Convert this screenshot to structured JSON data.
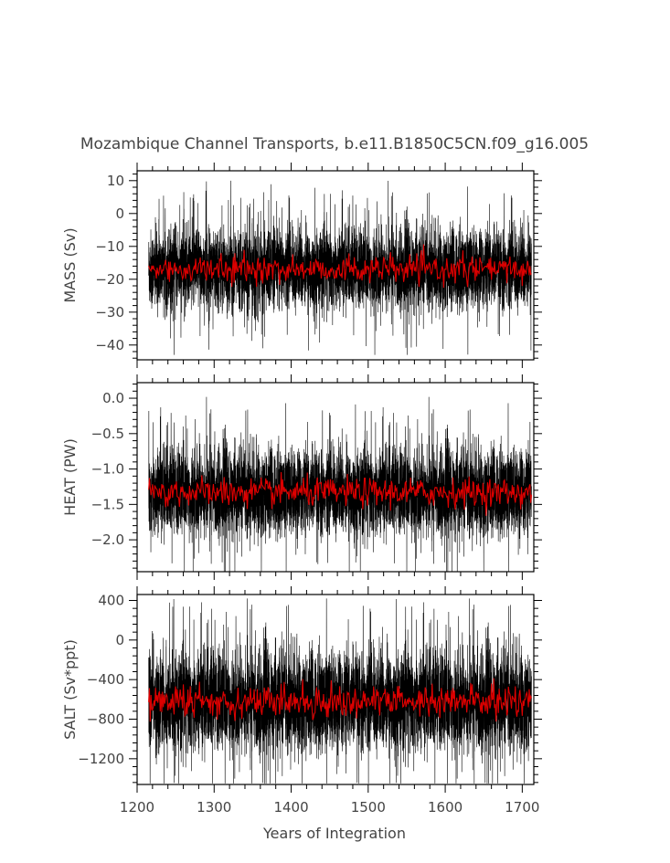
{
  "chart_data": {
    "title": "Mozambique Channel Transports, b.e11.B1850C5CN.f09_g16.005",
    "xlabel": "Years of Integration",
    "x_range": [
      1200,
      1715
    ],
    "x_ticks": [
      "1200",
      "1300",
      "1400",
      "1500",
      "1600",
      "1700"
    ],
    "panels": [
      {
        "type": "line",
        "ylabel": "MASS (Sv)",
        "ylim": [
          -44.5,
          13
        ],
        "y_ticks": [
          10,
          0,
          -10,
          -20,
          -30,
          -40
        ],
        "y_tick_labels": [
          "10",
          "0",
          "−10",
          "−20",
          "−30",
          "−40"
        ],
        "series": [
          {
            "color": "#000000",
            "mean": -17,
            "spread": 6.0,
            "min": -43,
            "max": 11
          },
          {
            "color": "#dd0000",
            "mean": -17,
            "spread": 2.0
          }
        ],
        "x": [
          1215,
          1712
        ]
      },
      {
        "type": "line",
        "ylabel": "HEAT (PW)",
        "ylim": [
          -2.45,
          0.22
        ],
        "y_ticks": [
          0.0,
          -0.5,
          -1.0,
          -1.5,
          -2.0
        ],
        "y_tick_labels": [
          "0.0",
          "−0.5",
          "−1.0",
          "−1.5",
          "−2.0"
        ],
        "series": [
          {
            "color": "#000000",
            "mean": -1.33,
            "spread": 0.3,
            "min": -2.45,
            "max": 0.2
          },
          {
            "color": "#dd0000",
            "mean": -1.33,
            "spread": 0.1
          }
        ],
        "x": [
          1215,
          1712
        ]
      },
      {
        "type": "line",
        "ylabel": "SALT (Sv*ppt)",
        "ylim": [
          -1460,
          460
        ],
        "y_ticks": [
          400,
          0,
          -400,
          -800,
          -1200
        ],
        "y_tick_labels": [
          "400",
          "0",
          "−400",
          "−800",
          "−1200"
        ],
        "series": [
          {
            "color": "#000000",
            "mean": -620,
            "spread": 250,
            "min": -1450,
            "max": 420
          },
          {
            "color": "#dd0000",
            "mean": -620,
            "spread": 80
          }
        ],
        "x": [
          1215,
          1712
        ]
      }
    ]
  }
}
